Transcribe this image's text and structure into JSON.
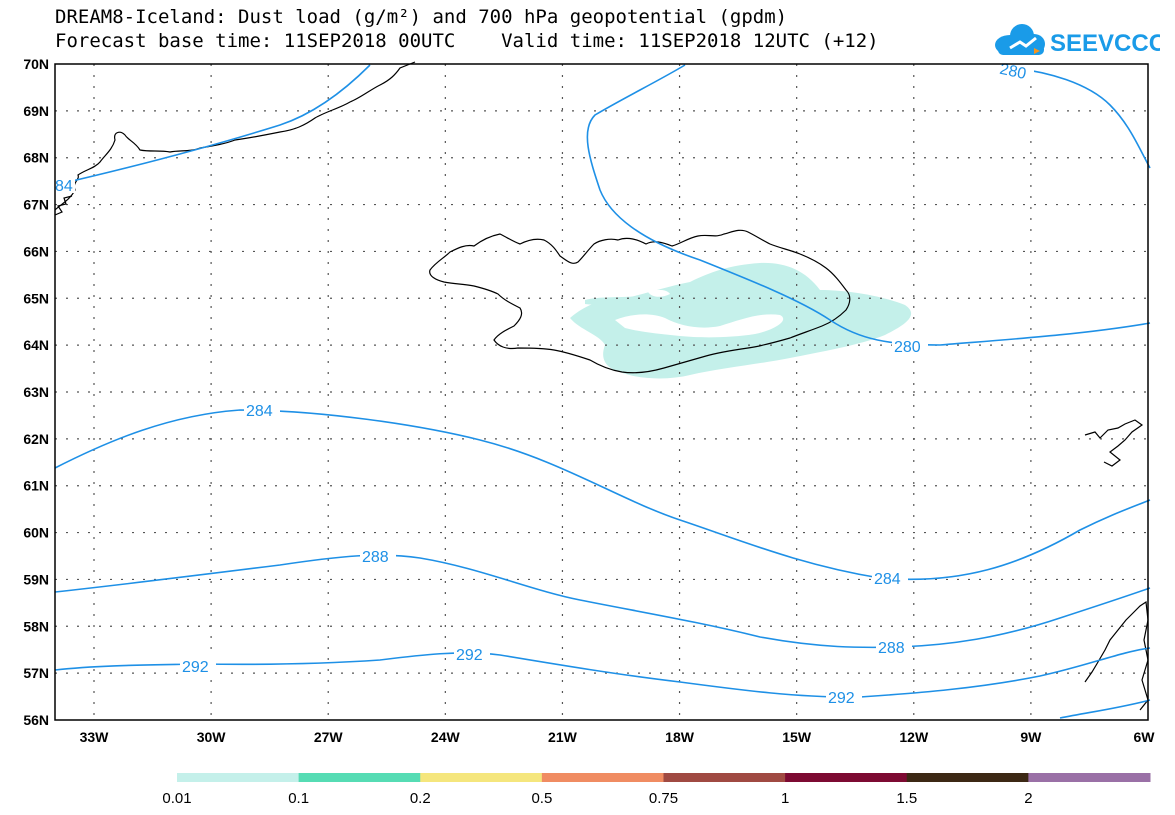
{
  "header": {
    "title_line1": "DREAM8-Iceland: Dust load (g/m²) and 700 hPa geopotential (gpdm)",
    "title_line2": "Forecast base time: 11SEP2018 00UTC    Valid time: 11SEP2018 12UTC (+12)"
  },
  "logo": {
    "text": "SEEVCCC",
    "icon": "cloud-icon",
    "color": "#1a9be8",
    "accent": "#f7941d"
  },
  "map": {
    "lat_labels": [
      "70N",
      "69N",
      "68N",
      "67N",
      "66N",
      "65N",
      "64N",
      "63N",
      "62N",
      "61N",
      "60N",
      "59N",
      "58N",
      "57N",
      "56N"
    ],
    "lon_labels": [
      "33W",
      "30W",
      "27W",
      "24W",
      "21W",
      "18W",
      "15W",
      "12W",
      "9W",
      "6W"
    ],
    "contour_color": "#1e90e6",
    "coast_color": "#000000",
    "dust_color": "#c4f0ea",
    "contour_labels": {
      "c280_top": "280",
      "c280_east": "280",
      "c284_west": "284",
      "c284_east": "284",
      "c288_west": "288",
      "c288_east": "288",
      "c292_a": "292",
      "c292_b": "292",
      "c292_c": "292",
      "c284_edge": "84"
    }
  },
  "colorbar": {
    "colors": [
      "#c4f0ea",
      "#56dcb4",
      "#f5e67d",
      "#f08c62",
      "#a04a42",
      "#7d0a32",
      "#3c2814",
      "#9a70a6"
    ],
    "labels": [
      "0.01",
      "0.1",
      "0.2",
      "0.5",
      "0.75",
      "1",
      "1.5",
      "2"
    ]
  }
}
